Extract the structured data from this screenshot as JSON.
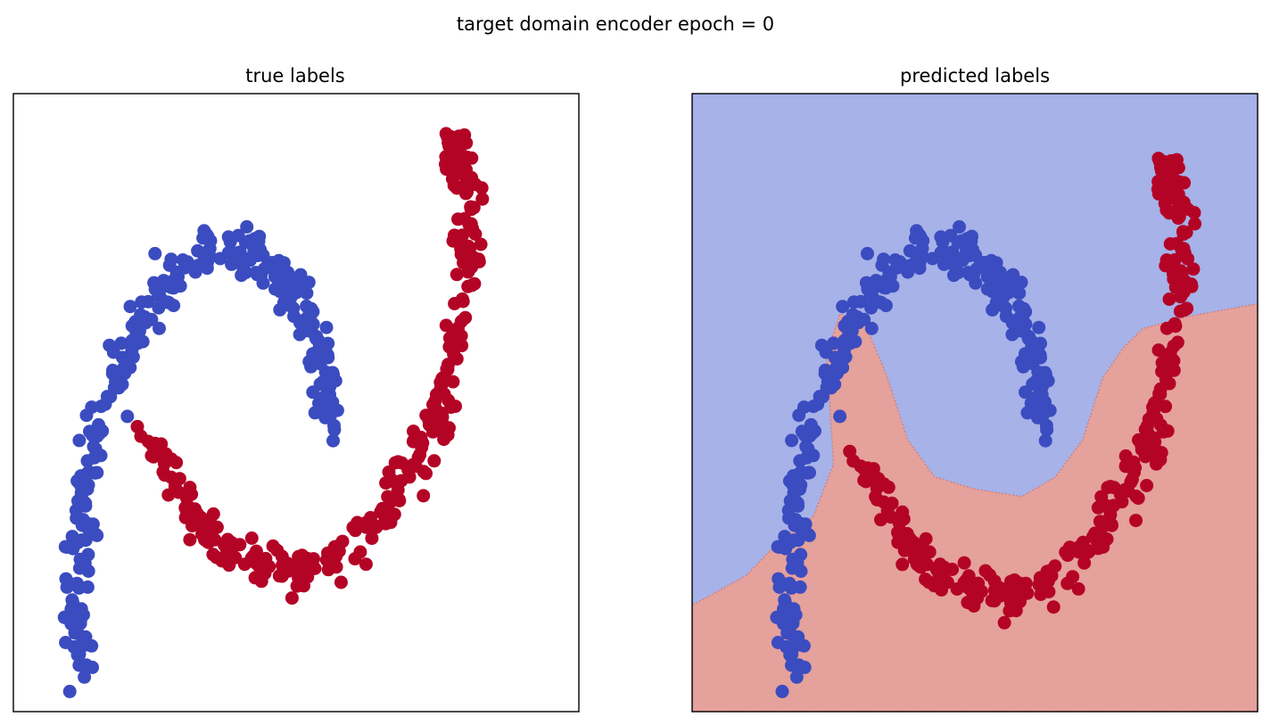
{
  "figure": {
    "suptitle": "target domain encoder epoch = 0"
  },
  "colors": {
    "class0_point": "#3b4cc0",
    "class1_point": "#b40426",
    "class0_region": "#a6b2e8",
    "class1_region": "#e5a19b",
    "axes_edge": "#000000"
  },
  "chart_data": [
    {
      "type": "scatter",
      "title": "true labels",
      "ticks": "none",
      "grid": false,
      "xlim": [
        -1.6,
        2.6
      ],
      "ylim": [
        -1.05,
        1.45
      ],
      "series": [
        {
          "class": 0,
          "color": "#3b4cc0"
        },
        {
          "class": 1,
          "color": "#b40426"
        }
      ],
      "moons": {
        "class0_curve": [
          [
            -1.1,
            -0.3
          ],
          [
            -1.12,
            -0.55
          ],
          [
            -1.05,
            -0.85
          ],
          [
            -0.93,
            0.2
          ],
          [
            -0.5,
            0.75
          ],
          [
            0.1,
            0.82
          ],
          [
            0.6,
            0.5
          ],
          [
            0.75,
            0.12
          ]
        ],
        "class1_curve": [
          [
            -0.6,
            0.05
          ],
          [
            -0.1,
            -0.35
          ],
          [
            0.4,
            -0.48
          ],
          [
            1.2,
            -0.2
          ],
          [
            1.55,
            0.2
          ],
          [
            1.77,
            0.6
          ],
          [
            1.8,
            1.0
          ],
          [
            1.65,
            1.28
          ]
        ],
        "points_per_class": 300
      }
    },
    {
      "type": "scatter",
      "title": "predicted labels",
      "ticks": "none",
      "grid": false,
      "xlim": [
        -1.6,
        2.6
      ],
      "ylim": [
        -1.05,
        1.45
      ],
      "background": "decision_regions",
      "series": [
        {
          "class": 0,
          "color": "#3b4cc0"
        },
        {
          "class": 1,
          "color": "#b40426"
        }
      ]
    }
  ]
}
